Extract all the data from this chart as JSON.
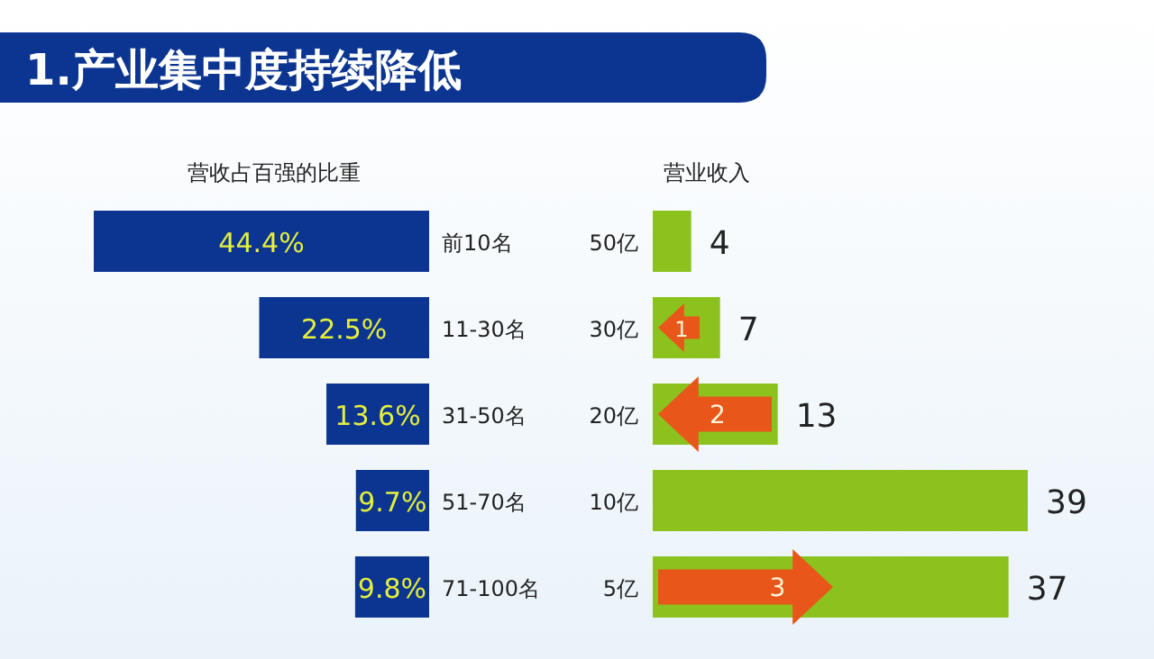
{
  "chart_data": [
    {
      "type": "bar",
      "orientation": "horizontal",
      "title": "1.产业集中度持续降低",
      "subtitle": "营收占百强的比重",
      "categories": [
        "前10名",
        "11-30名",
        "31-50名",
        "51-70名",
        "71-100名"
      ],
      "values": [
        44.4,
        22.5,
        13.6,
        9.7,
        9.8
      ],
      "color": "#0b3590",
      "value_labels": [
        "44.4%",
        "22.5%",
        "13.6%",
        "9.7%",
        "9.8%"
      ]
    },
    {
      "type": "bar",
      "orientation": "horizontal",
      "title": "营业收入",
      "categories": [
        "50亿",
        "30亿",
        "20亿",
        "10亿",
        "5亿"
      ],
      "values": [
        4,
        7,
        13,
        39,
        37
      ],
      "color": "#8cc21e",
      "data_labels": true,
      "annotations": [
        {
          "text": "1",
          "y": "30亿"
        },
        {
          "text": "2",
          "y": "20亿"
        },
        {
          "text": "3",
          "y": "5亿"
        }
      ]
    }
  ]
}
